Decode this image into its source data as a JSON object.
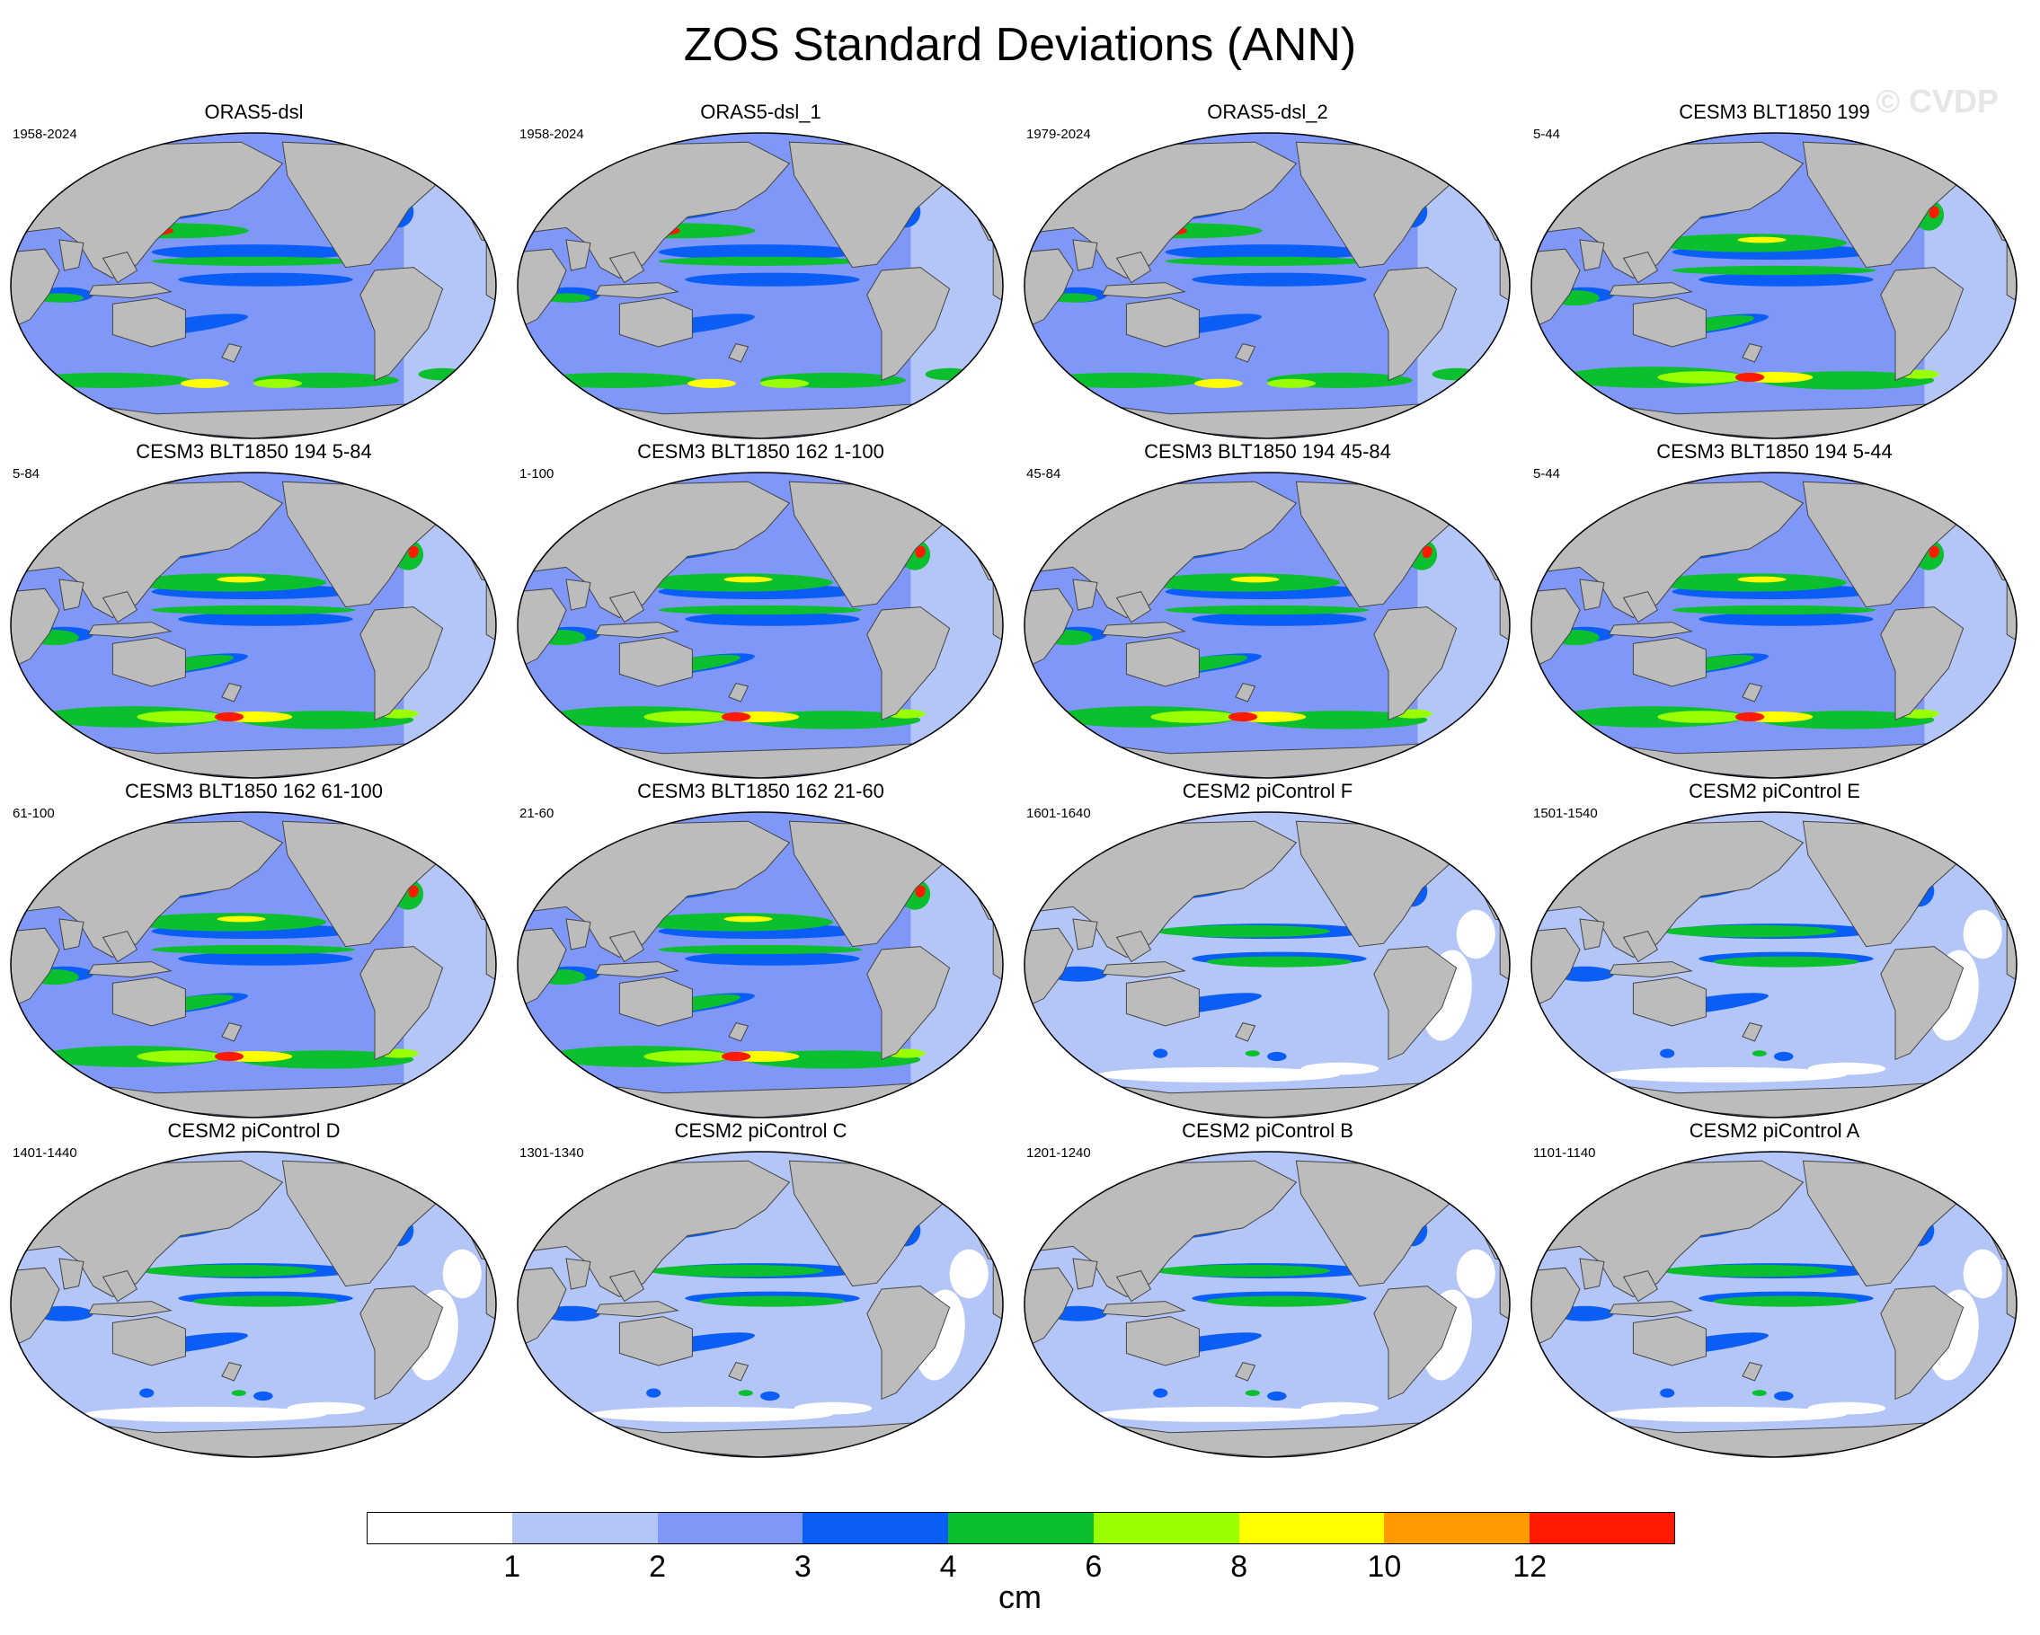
{
  "title": "ZOS Standard Deviations (ANN)",
  "watermark": "© CVDP",
  "colors": {
    "levels": [
      "#ffffff",
      "#b4c6f8",
      "#7f97f7",
      "#0a5ef5",
      "#0cbf2e",
      "#9aff00",
      "#ffff00",
      "#ff9a00",
      "#ff1a00"
    ],
    "land": "#bcbcbc",
    "coast": "#444444"
  },
  "colorbar": {
    "labels": [
      "1",
      "2",
      "3",
      "4",
      "6",
      "8",
      "10",
      "12"
    ],
    "units": "cm"
  },
  "panels": [
    {
      "title": "ORAS5-dsl",
      "period": "1958-2024",
      "intensity": "obs"
    },
    {
      "title": "ORAS5-dsl_1",
      "period": "1958-2024",
      "intensity": "obs"
    },
    {
      "title": "ORAS5-dsl_2",
      "period": "1979-2024",
      "intensity": "obs"
    },
    {
      "title": "CESM3 BLT1850 199",
      "period": "5-44",
      "intensity": "high"
    },
    {
      "title": "CESM3 BLT1850 194 5-84",
      "period": "5-84",
      "intensity": "high"
    },
    {
      "title": "CESM3 BLT1850 162 1-100",
      "period": "1-100",
      "intensity": "high"
    },
    {
      "title": "CESM3 BLT1850 194 45-84",
      "period": "45-84",
      "intensity": "high"
    },
    {
      "title": "CESM3 BLT1850 194 5-44",
      "period": "5-44",
      "intensity": "high"
    },
    {
      "title": "CESM3 BLT1850 162 61-100",
      "period": "61-100",
      "intensity": "high"
    },
    {
      "title": "CESM3 BLT1850 162 21-60",
      "period": "21-60",
      "intensity": "high"
    },
    {
      "title": "CESM2 piControl F",
      "period": "1601-1640",
      "intensity": "low"
    },
    {
      "title": "CESM2 piControl E",
      "period": "1501-1540",
      "intensity": "low"
    },
    {
      "title": "CESM2 piControl D",
      "period": "1401-1440",
      "intensity": "low"
    },
    {
      "title": "CESM2 piControl C",
      "period": "1301-1340",
      "intensity": "low"
    },
    {
      "title": "CESM2 piControl B",
      "period": "1201-1240",
      "intensity": "low"
    },
    {
      "title": "CESM2 piControl A",
      "period": "1101-1140",
      "intensity": "low"
    }
  ]
}
